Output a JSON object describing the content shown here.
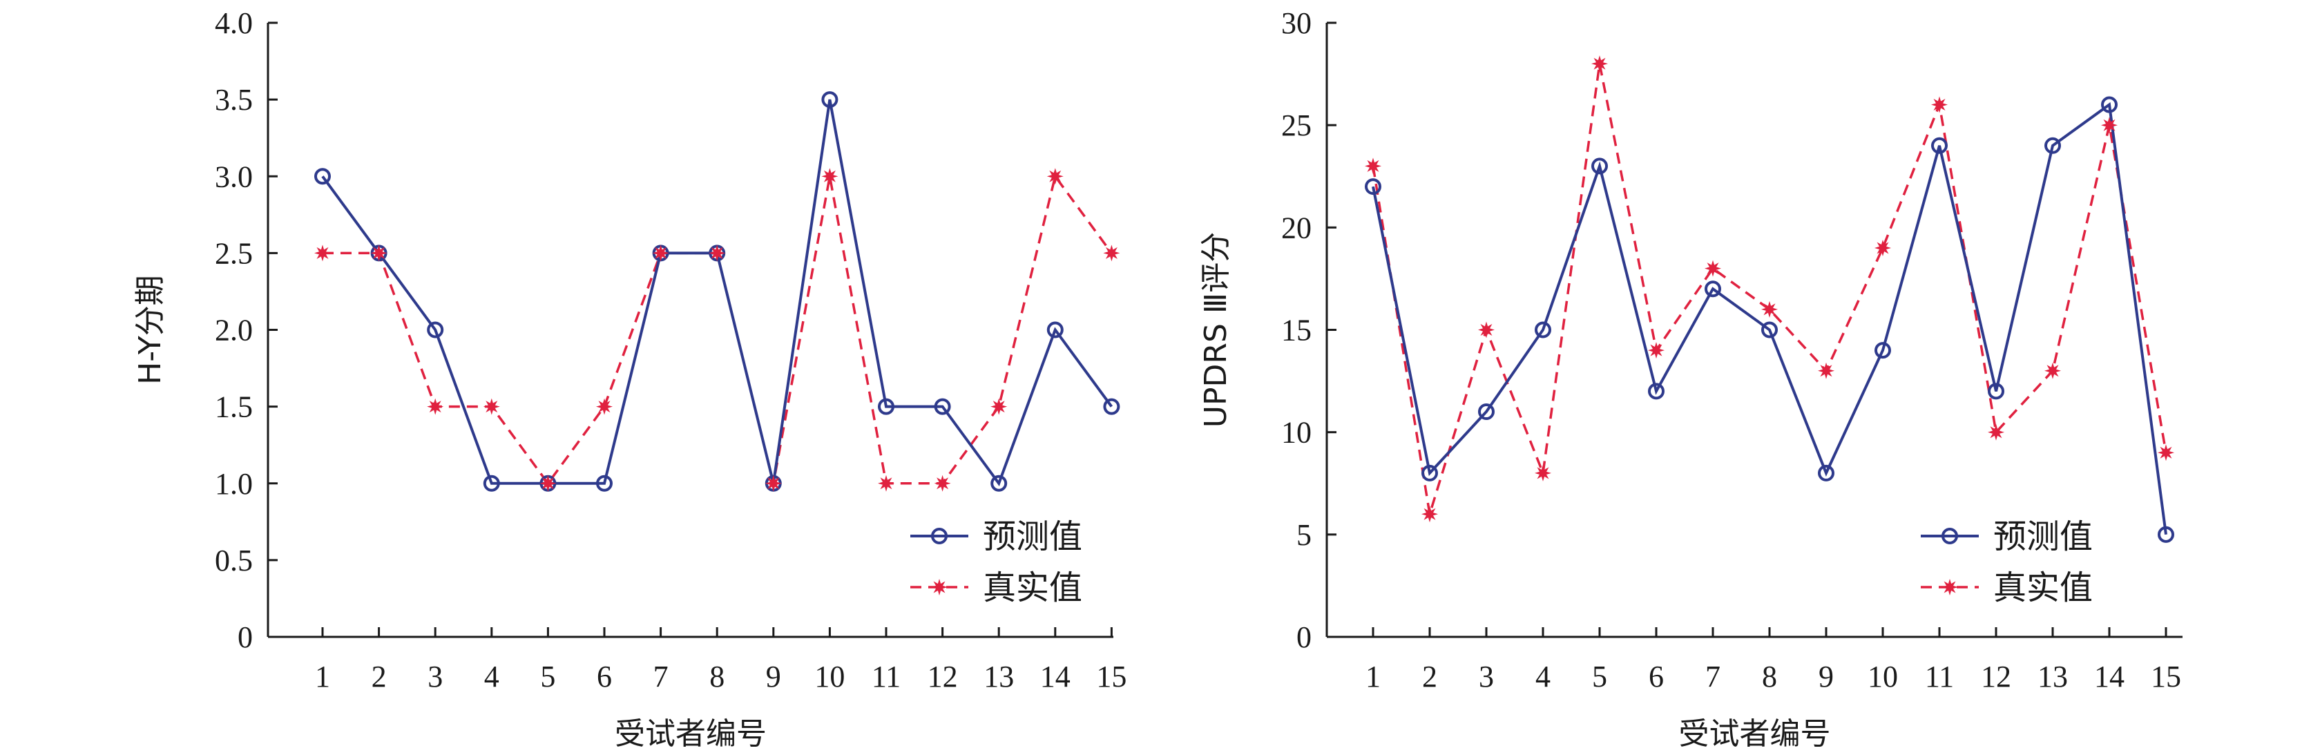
{
  "colors": {
    "predicted": "#2E3A8C",
    "actual": "#E0213F",
    "axis": "#1a1a1a"
  },
  "chart_data": [
    {
      "type": "line",
      "xlabel": "受试者编号",
      "ylabel": "H-Y分期",
      "ylim": [
        0,
        4.0
      ],
      "y_ticks": [
        "0",
        "0.5",
        "1.0",
        "1.5",
        "2.0",
        "2.5",
        "3.0",
        "3.5",
        "4.0"
      ],
      "categories": [
        "1",
        "2",
        "3",
        "4",
        "5",
        "6",
        "7",
        "8",
        "9",
        "10",
        "11",
        "12",
        "13",
        "14",
        "15"
      ],
      "series": [
        {
          "name": "预测值",
          "values": [
            3.0,
            2.5,
            2.0,
            1.0,
            1.0,
            1.0,
            2.5,
            2.5,
            1.0,
            3.5,
            1.5,
            1.5,
            1.0,
            2.0,
            1.5
          ]
        },
        {
          "name": "真实值",
          "values": [
            2.5,
            2.5,
            1.5,
            1.5,
            1.0,
            1.5,
            2.5,
            2.5,
            1.0,
            3.0,
            1.0,
            1.0,
            1.5,
            3.0,
            2.5
          ]
        }
      ],
      "legend": "bottom-right"
    },
    {
      "type": "line",
      "xlabel": "受试者编号",
      "ylabel": "UPDRS Ⅲ评分",
      "ylim": [
        0,
        30
      ],
      "y_ticks": [
        "0",
        "5",
        "10",
        "15",
        "20",
        "25",
        "30"
      ],
      "categories": [
        "1",
        "2",
        "3",
        "4",
        "5",
        "6",
        "7",
        "8",
        "9",
        "10",
        "11",
        "12",
        "13",
        "14",
        "15"
      ],
      "series": [
        {
          "name": "预测值",
          "values": [
            22,
            8,
            11,
            15,
            23,
            12,
            17,
            15,
            8,
            14,
            24,
            12,
            24,
            26,
            5
          ]
        },
        {
          "name": "真实值",
          "values": [
            23,
            6,
            15,
            8,
            28,
            14,
            18,
            16,
            13,
            19,
            26,
            10,
            13,
            25,
            9
          ]
        }
      ],
      "legend": "bottom-right"
    }
  ]
}
